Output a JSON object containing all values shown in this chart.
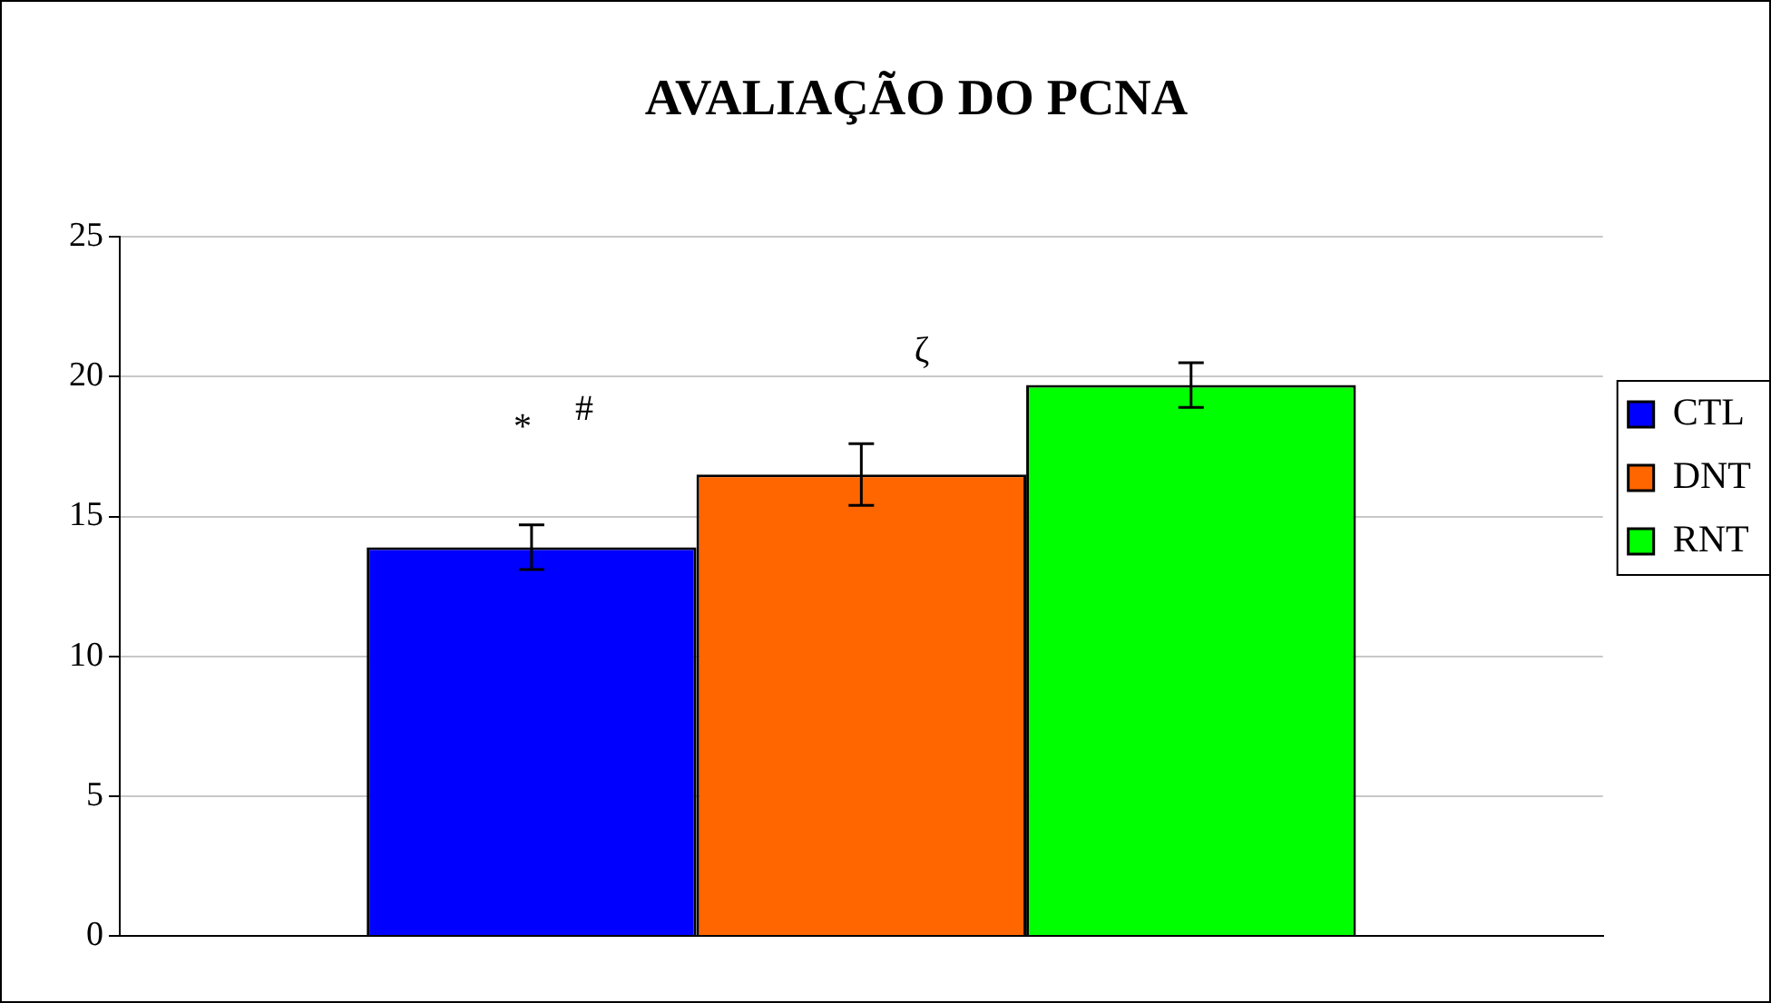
{
  "chart_data": {
    "type": "bar",
    "title": "AVALIAÇÃO DO PCNA",
    "categories": [
      null
    ],
    "series": [
      {
        "name": "CTL",
        "color": "#0000ff",
        "values": [
          13.9
        ],
        "errors": [
          0.8
        ]
      },
      {
        "name": "DNT",
        "color": "#ff6600",
        "values": [
          16.5
        ],
        "errors": [
          1.1
        ]
      },
      {
        "name": "RNT",
        "color": "#00ff00",
        "values": [
          19.7
        ],
        "errors": [
          0.8
        ]
      }
    ],
    "annotations": [
      "*",
      "#",
      "ζ"
    ],
    "ylim": [
      0,
      25
    ],
    "yticks": [
      0,
      5,
      10,
      15,
      20,
      25
    ],
    "grid": "y",
    "legend": "right"
  }
}
